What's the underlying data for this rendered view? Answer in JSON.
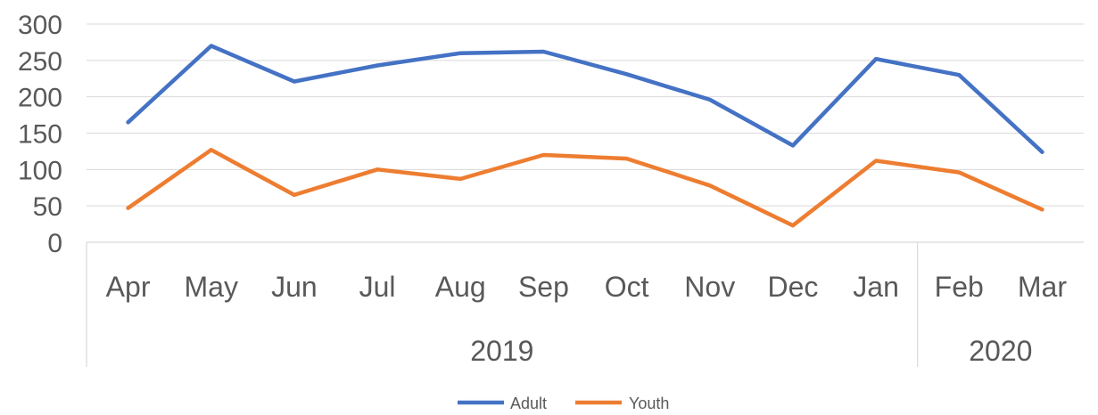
{
  "chart_data": {
    "type": "line",
    "categories": [
      "Apr",
      "May",
      "Jun",
      "Jul",
      "Aug",
      "Sep",
      "Oct",
      "Nov",
      "Dec",
      "Jan",
      "Feb",
      "Mar"
    ],
    "groups": [
      {
        "label": "2019",
        "count": 10
      },
      {
        "label": "2020",
        "count": 2
      }
    ],
    "series": [
      {
        "name": "Adult",
        "color": "#4472C4",
        "values": [
          165,
          270,
          221,
          243,
          260,
          262,
          231,
          196,
          133,
          252,
          230,
          124
        ]
      },
      {
        "name": "Youth",
        "color": "#ED7D31",
        "values": [
          47,
          127,
          65,
          100,
          87,
          120,
          115,
          78,
          23,
          112,
          96,
          45
        ]
      }
    ],
    "ylim": [
      0,
      300
    ],
    "yticks": [
      "0",
      "50",
      "100",
      "150",
      "200",
      "250",
      "300"
    ],
    "grid": true,
    "legend": "bottom-center"
  }
}
